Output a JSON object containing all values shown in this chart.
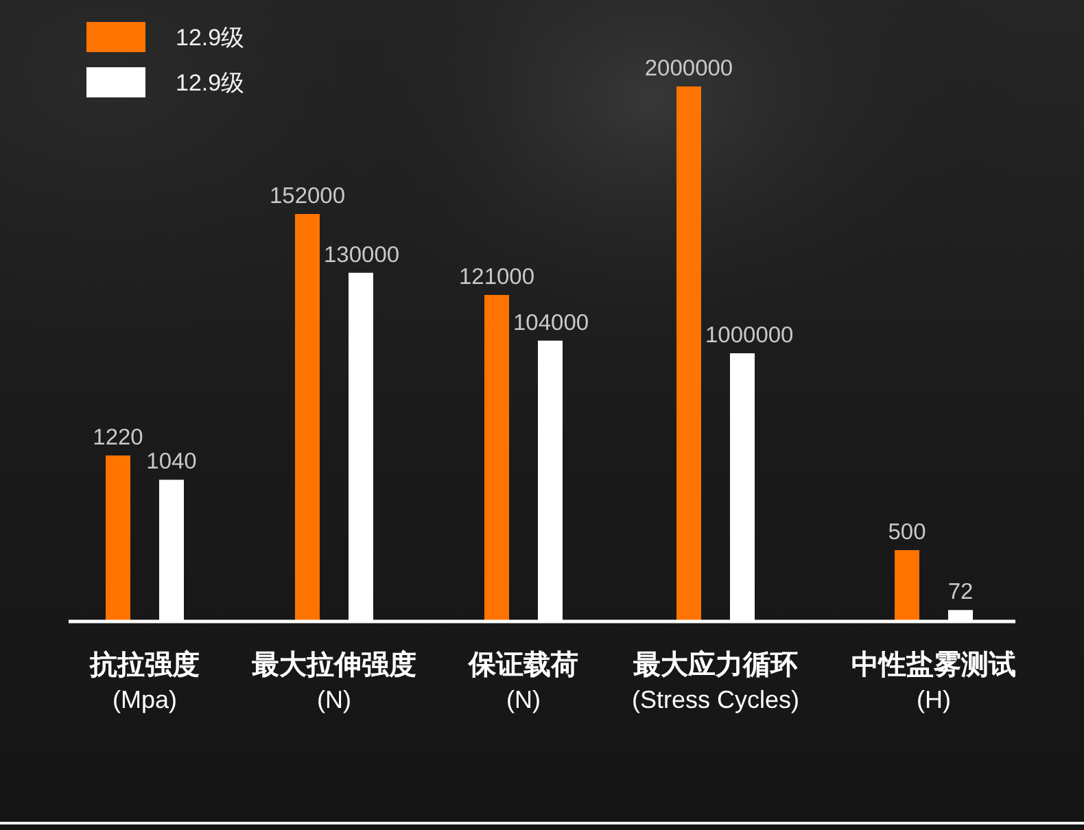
{
  "chart_data": [
    {
      "type": "bar",
      "categories": [
        "抗拉强度\n(Mpa)"
      ],
      "series": [
        {
          "name": "12.9级",
          "color": "#ff7300",
          "values": [
            1220
          ]
        },
        {
          "name": "12.9级",
          "color": "#ffffff",
          "values": [
            1040
          ]
        }
      ],
      "data_labels": true,
      "tick_labels": "x",
      "legend": "top"
    },
    {
      "type": "bar",
      "categories": [
        "最大拉伸强度\n(N)"
      ],
      "series": [
        {
          "color": "#ff7300",
          "values": [
            152000
          ]
        },
        {
          "color": "#ffffff",
          "values": [
            130000
          ]
        }
      ],
      "data_labels": true,
      "tick_labels": "x"
    },
    {
      "type": "bar",
      "categories": [
        "保证载荷\n(N)"
      ],
      "series": [
        {
          "color": "#ff7300",
          "values": [
            121000
          ]
        },
        {
          "color": "#ffffff",
          "values": [
            104000
          ]
        }
      ],
      "data_labels": true,
      "tick_labels": "x"
    },
    {
      "type": "bar",
      "categories": [
        "最大应力循环\n(Stress Cycles)"
      ],
      "series": [
        {
          "color": "#ff7300",
          "values": [
            2000000
          ]
        },
        {
          "color": "#ffffff",
          "values": [
            1000000
          ]
        }
      ],
      "data_labels": true,
      "tick_labels": "x"
    },
    {
      "type": "bar",
      "categories": [
        "中性盐雾测试\n(H)"
      ],
      "series": [
        {
          "color": "#ff7300",
          "values": [
            500
          ]
        },
        {
          "color": "#ffffff",
          "values": [
            72
          ]
        }
      ],
      "data_labels": true,
      "tick_labels": "x"
    }
  ]
}
